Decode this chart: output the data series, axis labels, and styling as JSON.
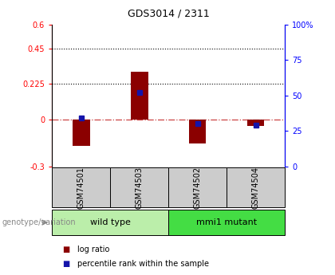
{
  "title": "GDS3014 / 2311",
  "samples": [
    "GSM74501",
    "GSM74503",
    "GSM74502",
    "GSM74504"
  ],
  "log_ratios": [
    -0.17,
    0.3,
    -0.155,
    -0.045
  ],
  "percentile_ranks_pct": [
    34,
    52,
    30,
    29
  ],
  "left_ylim": [
    -0.3,
    0.6
  ],
  "right_ylim": [
    0,
    100
  ],
  "left_yticks": [
    -0.3,
    0,
    0.225,
    0.45,
    0.6
  ],
  "right_yticks": [
    0,
    25,
    50,
    75,
    100
  ],
  "right_yticklabels": [
    "0",
    "25",
    "50",
    "75",
    "100%"
  ],
  "hlines": [
    0.225,
    0.45
  ],
  "bar_color": "#8B0000",
  "dot_color": "#1414AA",
  "zero_line_color": "#CC4444",
  "group_info": [
    {
      "xmin": -0.5,
      "xmax": 1.5,
      "color": "#BBEEAA",
      "label": "wild type"
    },
    {
      "xmin": 1.5,
      "xmax": 3.5,
      "color": "#44DD44",
      "label": "mmi1 mutant"
    }
  ],
  "legend_items": [
    {
      "label": "log ratio",
      "color": "#8B0000"
    },
    {
      "label": "percentile rank within the sample",
      "color": "#1414AA"
    }
  ],
  "genotype_label": "genotype/variation",
  "sample_box_color": "#CCCCCC",
  "bar_width": 0.3,
  "title_fontsize": 9,
  "tick_fontsize": 7,
  "sample_fontsize": 7,
  "group_fontsize": 8,
  "legend_fontsize": 7,
  "genotype_fontsize": 7
}
